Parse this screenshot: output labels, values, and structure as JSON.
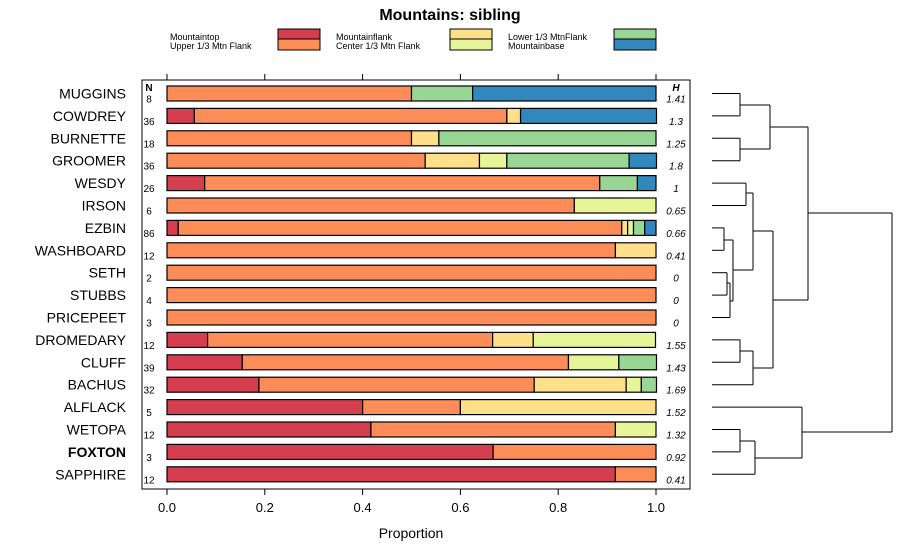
{
  "chart_data": {
    "type": "bar",
    "stacked": true,
    "title": "Mountains: sibling",
    "xlabel": "Proportion",
    "ylabel": "",
    "xlim": [
      0,
      1
    ],
    "xticks": [
      "0.0",
      "0.2",
      "0.4",
      "0.6",
      "0.8",
      "1.0"
    ],
    "n_header": "N",
    "h_header": "H",
    "legend": [
      {
        "name": "Mountaintop",
        "color": "#d53e4f"
      },
      {
        "name": "Upper 1/3 Mtn Flank",
        "color": "#fc8d59"
      },
      {
        "name": "Mountainflank",
        "color": "#fee08b"
      },
      {
        "name": "Center 1/3 Mtn Flank",
        "color": "#e6f598"
      },
      {
        "name": "Lower 1/3 MtnFlank",
        "color": "#99d594"
      },
      {
        "name": "Mountainbase",
        "color": "#3288bd"
      }
    ],
    "rows": [
      {
        "name": "MUGGINS",
        "bold": false,
        "n": "8",
        "h": "1.41",
        "values": [
          0,
          0.5,
          0,
          0,
          0.125,
          0.375
        ]
      },
      {
        "name": "COWDREY",
        "bold": false,
        "n": "36",
        "h": "1.3",
        "values": [
          0.056,
          0.639,
          0.028,
          0,
          0,
          0.278
        ]
      },
      {
        "name": "BURNETTE",
        "bold": false,
        "n": "18",
        "h": "1.25",
        "values": [
          0,
          0.5,
          0.056,
          0,
          0.444,
          0
        ]
      },
      {
        "name": "GROOMER",
        "bold": false,
        "n": "36",
        "h": "1.8",
        "values": [
          0,
          0.528,
          0.111,
          0.056,
          0.25,
          0.056
        ]
      },
      {
        "name": "WESDY",
        "bold": false,
        "n": "26",
        "h": "1",
        "values": [
          0.077,
          0.808,
          0,
          0,
          0.077,
          0.038
        ]
      },
      {
        "name": "IRSON",
        "bold": false,
        "n": "6",
        "h": "0.65",
        "values": [
          0,
          0.833,
          0,
          0.167,
          0,
          0
        ]
      },
      {
        "name": "EZBIN",
        "bold": false,
        "n": "86",
        "h": "0.66",
        "values": [
          0.023,
          0.907,
          0.012,
          0.012,
          0.023,
          0.023
        ]
      },
      {
        "name": "WASHBOARD",
        "bold": false,
        "n": "12",
        "h": "0.41",
        "values": [
          0,
          0.917,
          0.083,
          0,
          0,
          0
        ]
      },
      {
        "name": "SETH",
        "bold": false,
        "n": "2",
        "h": "0",
        "values": [
          0,
          1,
          0,
          0,
          0,
          0
        ]
      },
      {
        "name": "STUBBS",
        "bold": false,
        "n": "4",
        "h": "0",
        "values": [
          0,
          1,
          0,
          0,
          0,
          0
        ]
      },
      {
        "name": "PRICEPEET",
        "bold": false,
        "n": "3",
        "h": "0",
        "values": [
          0,
          1,
          0,
          0,
          0,
          0
        ]
      },
      {
        "name": "DROMEDARY",
        "bold": false,
        "n": "12",
        "h": "1.55",
        "values": [
          0.083,
          0.583,
          0.083,
          0.25,
          0,
          0
        ]
      },
      {
        "name": "CLUFF",
        "bold": false,
        "n": "39",
        "h": "1.43",
        "values": [
          0.154,
          0.667,
          0,
          0.103,
          0.077,
          0
        ]
      },
      {
        "name": "BACHUS",
        "bold": false,
        "n": "32",
        "h": "1.69",
        "values": [
          0.188,
          0.563,
          0.188,
          0.031,
          0.031,
          0
        ]
      },
      {
        "name": "ALFLACK",
        "bold": false,
        "n": "5",
        "h": "1.52",
        "values": [
          0.4,
          0.2,
          0.4,
          0,
          0,
          0
        ]
      },
      {
        "name": "WETOPA",
        "bold": false,
        "n": "12",
        "h": "1.32",
        "values": [
          0.417,
          0.5,
          0,
          0.083,
          0,
          0
        ]
      },
      {
        "name": "FOXTON",
        "bold": true,
        "n": "3",
        "h": "0.92",
        "values": [
          0.667,
          0.333,
          0,
          0,
          0,
          0
        ]
      },
      {
        "name": "SAPPHIRE",
        "bold": false,
        "n": "12",
        "h": "0.41",
        "values": [
          0.917,
          0.083,
          0,
          0,
          0,
          0
        ]
      }
    ]
  }
}
